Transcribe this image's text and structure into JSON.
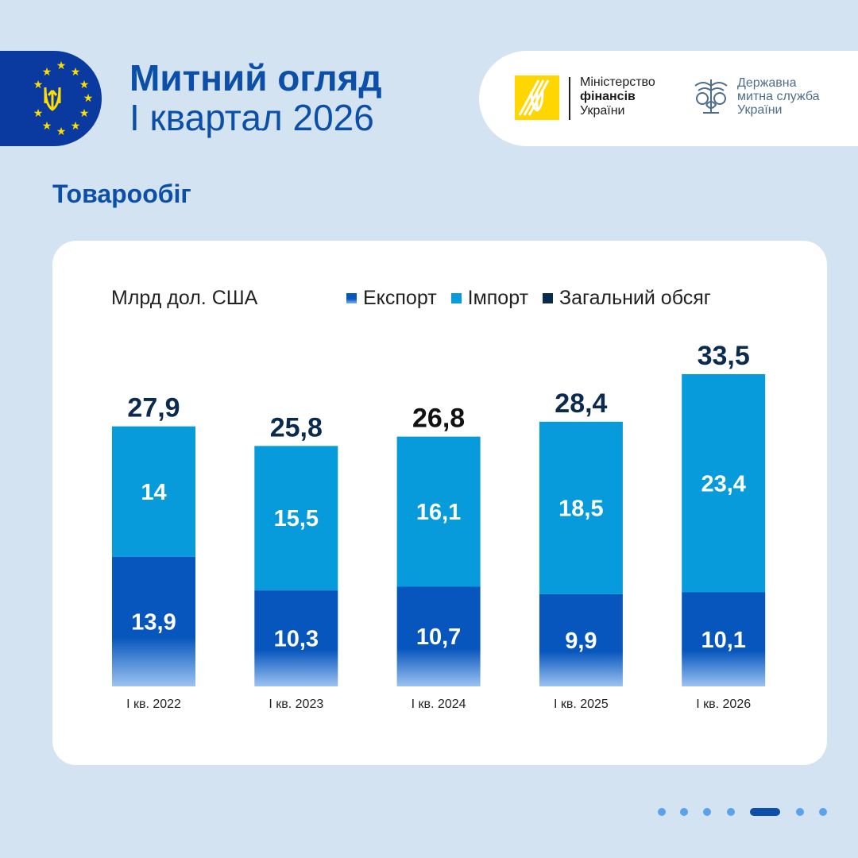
{
  "header": {
    "title_line1": "Митний огляд",
    "title_line2": "I квартал 2026"
  },
  "logos": {
    "ministry": {
      "line1": "Міністерство",
      "line2": "фінансів",
      "line3": "України"
    },
    "customs": {
      "line1": "Державна",
      "line2": "митна служба",
      "line3": "України"
    }
  },
  "section": {
    "title": "Товарообіг"
  },
  "colors": {
    "export": "#0756bd",
    "import": "#079bdb",
    "total": "#0b2a4f",
    "brand_blue": "#0b4fa8",
    "background": "#d4e3f2"
  },
  "chart_data": {
    "type": "bar",
    "stacked": true,
    "unit_label": "Млрд дол. США",
    "categories": [
      "I кв. 2022",
      "I кв. 2023",
      "I кв. 2024",
      "I кв. 2025",
      "I кв. 2026"
    ],
    "series": [
      {
        "name": "Експорт",
        "values_text": [
          "13,9",
          "10,3",
          "10,7",
          "9,9",
          "10,1"
        ],
        "values": [
          13.9,
          10.3,
          10.7,
          9.9,
          10.1
        ]
      },
      {
        "name": "Імпорт",
        "values_text": [
          "14",
          "15,5",
          "16,1",
          "18,5",
          "23,4"
        ],
        "values": [
          14,
          15.5,
          16.1,
          18.5,
          23.4
        ]
      }
    ],
    "totals_name": "Загальний обсяг",
    "totals_text": [
      "27,9",
      "25,8",
      "26,8",
      "28,4",
      "33,5"
    ],
    "totals": [
      27.9,
      25.8,
      26.8,
      28.4,
      33.5
    ],
    "ylim": [
      0,
      33.5
    ]
  },
  "pagination": {
    "total": 7,
    "active": 5
  }
}
